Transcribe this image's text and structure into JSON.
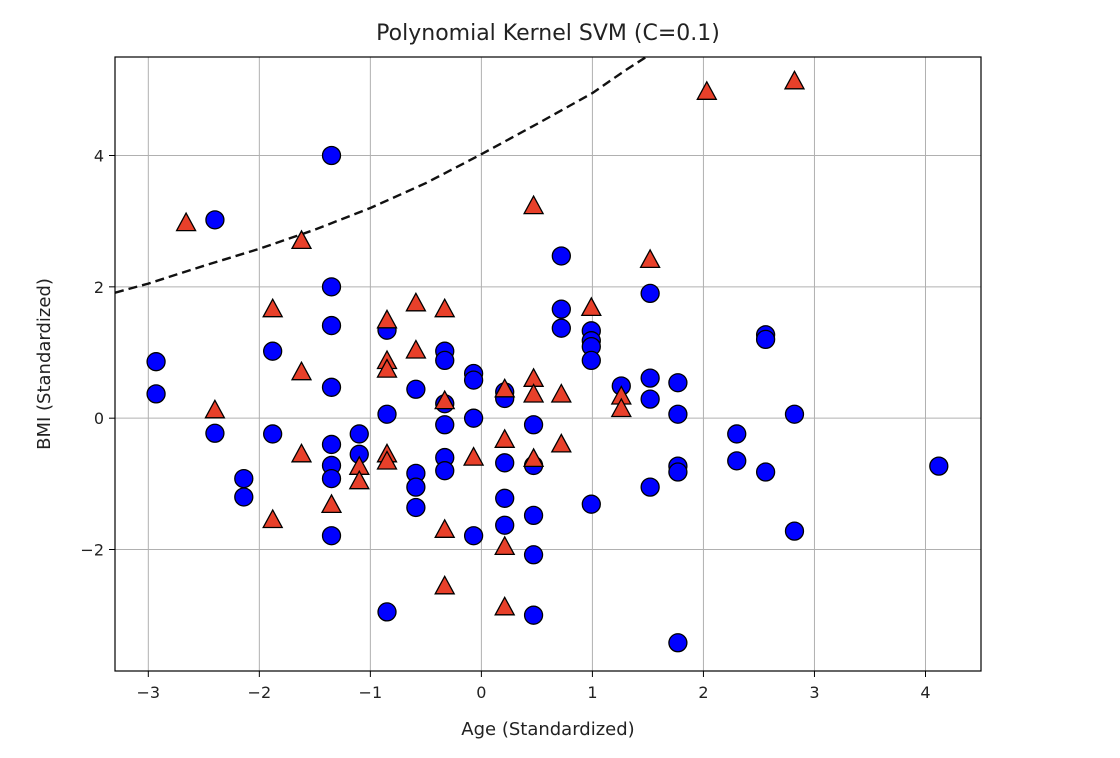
{
  "chart_data": {
    "type": "scatter",
    "title": "Polynomial Kernel SVM (C=0.1)",
    "xlabel": "Age (Standardized)",
    "ylabel": "BMI (Standardized)",
    "xlim": [
      -3.3,
      4.5
    ],
    "ylim": [
      -3.85,
      5.5
    ],
    "xticks": [
      -3,
      -2,
      -1,
      0,
      1,
      2,
      3,
      4
    ],
    "yticks": [
      -2,
      0,
      2,
      4
    ],
    "grid": true,
    "colors": {
      "class_circle": "#0000ff",
      "class_triangle": "#e8402a",
      "edge": "#000000",
      "boundary": "#111111",
      "grid": "#b0b0b0"
    },
    "series": [
      {
        "marker": "circle",
        "color": "#0000ff",
        "points": [
          [
            -2.93,
            0.86
          ],
          [
            -2.93,
            0.37
          ],
          [
            -2.4,
            3.02
          ],
          [
            -2.4,
            -0.23
          ],
          [
            -2.14,
            -0.92
          ],
          [
            -2.14,
            -1.2
          ],
          [
            -1.88,
            1.02
          ],
          [
            -1.88,
            -0.24
          ],
          [
            -1.35,
            4.0
          ],
          [
            -1.35,
            2.0
          ],
          [
            -1.35,
            1.41
          ],
          [
            -1.35,
            0.47
          ],
          [
            -1.35,
            -0.4
          ],
          [
            -1.35,
            -0.72
          ],
          [
            -1.35,
            -0.92
          ],
          [
            -1.35,
            -1.79
          ],
          [
            -1.1,
            -0.24
          ],
          [
            -1.1,
            -0.55
          ],
          [
            -0.85,
            1.34
          ],
          [
            -0.85,
            0.06
          ],
          [
            -0.85,
            -2.95
          ],
          [
            -0.59,
            0.44
          ],
          [
            -0.59,
            -0.84
          ],
          [
            -0.59,
            -1.05
          ],
          [
            -0.59,
            -1.36
          ],
          [
            -0.33,
            1.02
          ],
          [
            -0.33,
            0.88
          ],
          [
            -0.33,
            0.22
          ],
          [
            -0.33,
            -0.1
          ],
          [
            -0.33,
            -0.6
          ],
          [
            -0.33,
            -0.8
          ],
          [
            -0.07,
            0.68
          ],
          [
            -0.07,
            0.58
          ],
          [
            -0.07,
            0.0
          ],
          [
            -0.07,
            -1.79
          ],
          [
            0.21,
            0.4
          ],
          [
            0.21,
            0.3
          ],
          [
            0.21,
            -0.68
          ],
          [
            0.21,
            -1.22
          ],
          [
            0.21,
            -1.63
          ],
          [
            0.47,
            -0.1
          ],
          [
            0.47,
            -0.72
          ],
          [
            0.47,
            -1.48
          ],
          [
            0.47,
            -2.08
          ],
          [
            0.47,
            -3.0
          ],
          [
            0.72,
            2.47
          ],
          [
            0.72,
            1.66
          ],
          [
            0.72,
            1.37
          ],
          [
            0.99,
            1.33
          ],
          [
            0.99,
            1.18
          ],
          [
            0.99,
            1.09
          ],
          [
            0.99,
            0.88
          ],
          [
            0.99,
            -1.31
          ],
          [
            1.26,
            0.49
          ],
          [
            1.52,
            1.9
          ],
          [
            1.52,
            0.61
          ],
          [
            1.52,
            0.29
          ],
          [
            1.52,
            -1.05
          ],
          [
            1.77,
            0.54
          ],
          [
            1.77,
            0.06
          ],
          [
            1.77,
            -0.73
          ],
          [
            1.77,
            -0.82
          ],
          [
            1.77,
            -3.42
          ],
          [
            2.3,
            -0.24
          ],
          [
            2.3,
            -0.65
          ],
          [
            2.56,
            1.27
          ],
          [
            2.56,
            1.2
          ],
          [
            2.56,
            -0.82
          ],
          [
            2.82,
            0.06
          ],
          [
            2.82,
            -1.72
          ],
          [
            4.12,
            -0.73
          ]
        ]
      },
      {
        "marker": "triangle",
        "color": "#e8402a",
        "points": [
          [
            -2.66,
            2.97
          ],
          [
            -2.4,
            0.12
          ],
          [
            -1.88,
            1.66
          ],
          [
            -1.88,
            -1.55
          ],
          [
            -1.62,
            2.7
          ],
          [
            -1.62,
            0.7
          ],
          [
            -1.62,
            -0.55
          ],
          [
            -1.35,
            -1.32
          ],
          [
            -1.1,
            -0.74
          ],
          [
            -1.1,
            -0.96
          ],
          [
            -0.85,
            1.49
          ],
          [
            -0.85,
            0.87
          ],
          [
            -0.85,
            0.74
          ],
          [
            -0.85,
            -0.55
          ],
          [
            -0.85,
            -0.66
          ],
          [
            -0.59,
            1.75
          ],
          [
            -0.59,
            1.03
          ],
          [
            -0.33,
            1.66
          ],
          [
            -0.33,
            0.26
          ],
          [
            -0.33,
            -1.7
          ],
          [
            -0.33,
            -2.56
          ],
          [
            -0.07,
            -0.6
          ],
          [
            0.21,
            0.44
          ],
          [
            0.21,
            -0.33
          ],
          [
            0.21,
            -1.96
          ],
          [
            0.21,
            -2.88
          ],
          [
            0.47,
            3.23
          ],
          [
            0.47,
            0.6
          ],
          [
            0.47,
            0.36
          ],
          [
            0.47,
            -0.62
          ],
          [
            0.72,
            0.36
          ],
          [
            0.72,
            -0.4
          ],
          [
            0.99,
            1.68
          ],
          [
            1.26,
            0.33
          ],
          [
            1.26,
            0.14
          ],
          [
            1.52,
            2.41
          ],
          [
            2.03,
            4.97
          ],
          [
            2.82,
            5.13
          ]
        ]
      }
    ],
    "decision_boundary": {
      "style": "dashed",
      "points": [
        [
          -3.3,
          1.91
        ],
        [
          -3.0,
          2.05
        ],
        [
          -2.5,
          2.32
        ],
        [
          -2.0,
          2.58
        ],
        [
          -1.5,
          2.87
        ],
        [
          -1.0,
          3.2
        ],
        [
          -0.5,
          3.58
        ],
        [
          0.0,
          4.02
        ],
        [
          0.5,
          4.48
        ],
        [
          1.0,
          4.95
        ],
        [
          1.3,
          5.3
        ],
        [
          1.53,
          5.55
        ]
      ]
    }
  }
}
